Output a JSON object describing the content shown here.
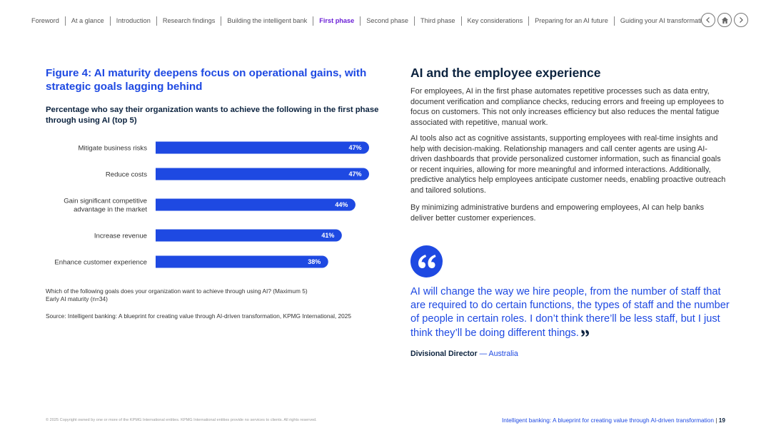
{
  "nav": {
    "items": [
      "Foreword",
      "At a glance",
      "Introduction",
      "Research findings",
      "Building the intelligent bank",
      "First phase",
      "Second phase",
      "Third phase",
      "Key considerations",
      "Preparing for an AI future",
      "Guiding your AI transformation"
    ],
    "active": "First phase",
    "controls": [
      "back-icon",
      "home-icon",
      "forward-icon"
    ]
  },
  "figure": {
    "title": "Figure 4: AI maturity deepens focus on operational gains, with strategic goals lagging behind",
    "subtitle": "Percentage who say their organization wants to achieve the following in the first phase through using AI (top 5)",
    "note_line1": "Which of the following goals does your organization want to achieve through using AI? (Maximum 5)",
    "note_line2": "Early AI maturity (n=34)",
    "source": "Source: Intelligent banking: A blueprint for creating value through AI-driven transformation, KPMG International, 2025"
  },
  "chart_data": {
    "type": "bar",
    "orientation": "horizontal",
    "categories": [
      "Mitigate business risks",
      "Reduce costs",
      "Gain significant competitive advantage in the market",
      "Increase revenue",
      "Enhance customer experience"
    ],
    "category_lines": [
      [
        "Mitigate business risks"
      ],
      [
        "Reduce costs"
      ],
      [
        "Gain significant competitive",
        "advantage in the market"
      ],
      [
        "Increase revenue"
      ],
      [
        "Enhance customer experience"
      ]
    ],
    "values": [
      47,
      47,
      44,
      41,
      38
    ],
    "value_labels": [
      "47%",
      "47%",
      "44%",
      "41%",
      "38%"
    ],
    "unit": "%",
    "xlim": [
      0,
      47
    ],
    "bar_color": "#1e49e2"
  },
  "article": {
    "title": "AI and the employee experience",
    "paragraphs": [
      "For employees, AI in the first phase automates repetitive processes such as data entry, document verification and compliance checks, reducing errors and freeing up employees to focus on customers. This not only increases efficiency but also reduces the mental fatigue associated with repetitive, manual work.",
      "AI tools also act as cognitive assistants, supporting employees with real-time insights and help with decision-making. Relationship managers and call center agents are using AI-driven dashboards that provide personalized customer information, such as financial goals or recent inquiries, allowing for more meaningful and informed interactions. Additionally, predictive analytics help employees anticipate customer needs, enabling proactive outreach and tailored solutions.",
      "By minimizing administrative burdens and empowering employees, AI can help banks deliver better customer experiences."
    ]
  },
  "quote": {
    "text": "AI will change the way we hire people, from the number of staff that are required to do certain functions, the types of staff and the number of people in certain roles. I don’t think there’ll be less staff, but I just think they’ll be doing different things.",
    "author_role": "Divisional Director",
    "author_location": "— Australia"
  },
  "footer": {
    "copyright": "© 2025 Copyright owned by one or more of the KPMG International entities. KPMG International entities provide no services to clients. All rights reserved.",
    "doc_title": "Intelligent banking: A blueprint for creating value through AI-driven transformation",
    "separator": "|",
    "page": "19"
  },
  "colors": {
    "accent": "#1e49e2",
    "navy": "#0c233f",
    "nav_active": "#6b1fd6"
  }
}
